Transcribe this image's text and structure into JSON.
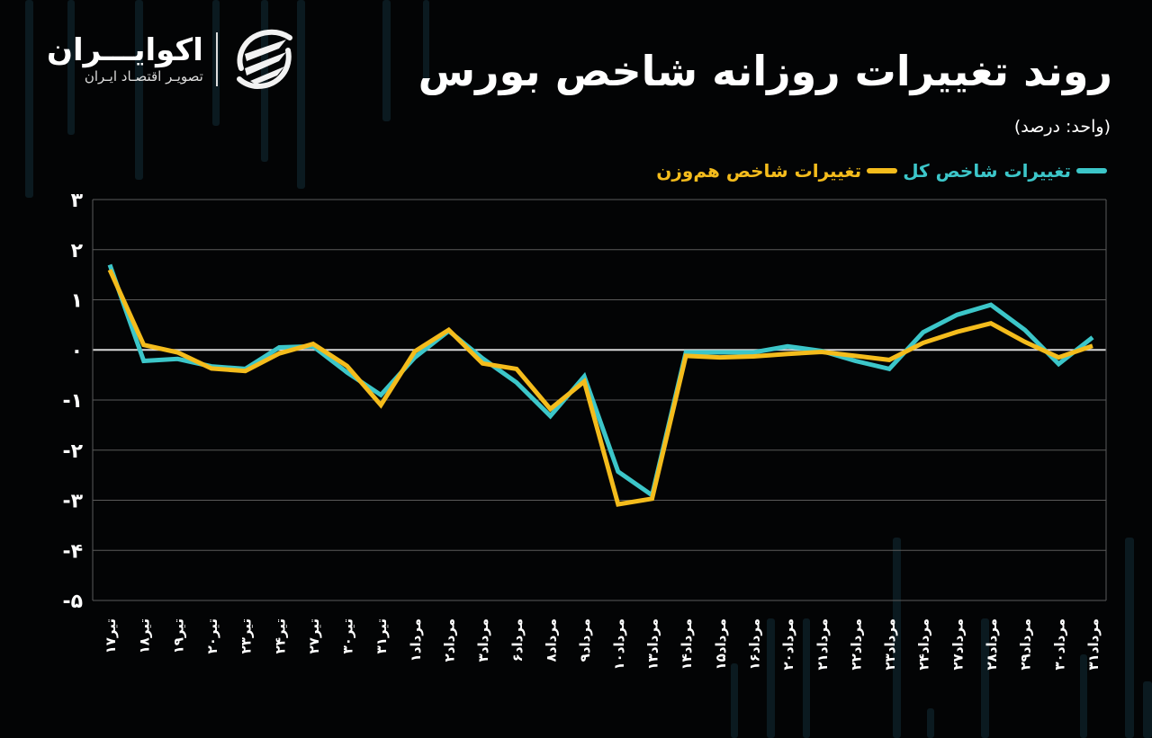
{
  "header": {
    "title": "روند تغییرات روزانه شاخص بورس",
    "unit": "(واحد: درصد)"
  },
  "brand": {
    "name": "اکوایـــران",
    "tagline": "تصویـر اقتصـاد ایـران",
    "logo_icon": "ecoiran-swirl-icon"
  },
  "legend": [
    {
      "label": "تغییرات شاخص کل",
      "color": "#3cc6c9"
    },
    {
      "label": "تغییرات شاخص هم‌وزن",
      "color": "#f4bc1c"
    }
  ],
  "colors": {
    "background": "#030405",
    "grid": "#5a5a5a",
    "zero_line": "#d8d8d8",
    "series_total": "#3cc6c9",
    "series_equal": "#f4bc1c"
  },
  "chart_data": {
    "type": "line",
    "title": "روند تغییرات روزانه شاخص بورس",
    "subtitle": "(واحد: درصد)",
    "xlabel": "",
    "ylabel": "درصد",
    "ylim": [
      -5,
      3
    ],
    "yticks": [
      3,
      2,
      1,
      0,
      -1,
      -2,
      -3,
      -4,
      -5
    ],
    "ytick_labels": [
      "۳",
      "۲",
      "۱",
      "۰",
      "-۱",
      "-۲",
      "-۳",
      "-۴",
      "-۵"
    ],
    "grid": true,
    "legend_position": "top-right",
    "categories": [
      "تیر۱۷",
      "تیر۱۸",
      "تیر۱۹",
      "تیر۲۰",
      "تیر۲۳",
      "تیر۲۴",
      "تیر۲۷",
      "تیر۳۰",
      "تیر۳۱",
      "مرداد۱",
      "مرداد۲",
      "مرداد۳",
      "مرداد۶",
      "مرداد۸",
      "مرداد۹",
      "مرداد۱۰",
      "مرداد۱۳",
      "مرداد۱۴",
      "مرداد۱۵",
      "مرداد۱۶",
      "مرداد۲۰",
      "مرداد۲۱",
      "مرداد۲۲",
      "مرداد۲۳",
      "مرداد۲۴",
      "مرداد۲۷",
      "مرداد۲۸",
      "مرداد۲۹",
      "مرداد۳۰",
      "مرداد۳۱"
    ],
    "series": [
      {
        "name": "تغییرات شاخص کل",
        "color": "#3cc6c9",
        "values": [
          1.7,
          -0.22,
          -0.18,
          -0.33,
          -0.38,
          0.05,
          0.07,
          -0.45,
          -0.9,
          -0.15,
          0.38,
          -0.17,
          -0.65,
          -1.32,
          -0.53,
          -2.43,
          -2.9,
          -0.05,
          -0.05,
          -0.05,
          0.07,
          -0.02,
          -0.22,
          -0.38,
          0.35,
          0.7,
          0.9,
          0.4,
          -0.28,
          0.25
        ]
      },
      {
        "name": "تغییرات شاخص هم‌وزن",
        "color": "#f4bc1c",
        "values": [
          1.6,
          0.1,
          -0.05,
          -0.37,
          -0.42,
          -0.07,
          0.12,
          -0.32,
          -1.1,
          -0.03,
          0.4,
          -0.27,
          -0.38,
          -1.18,
          -0.63,
          -3.08,
          -2.97,
          -0.12,
          -0.15,
          -0.13,
          -0.08,
          -0.04,
          -0.12,
          -0.2,
          0.14,
          0.36,
          0.53,
          0.16,
          -0.15,
          0.08
        ]
      }
    ]
  }
}
